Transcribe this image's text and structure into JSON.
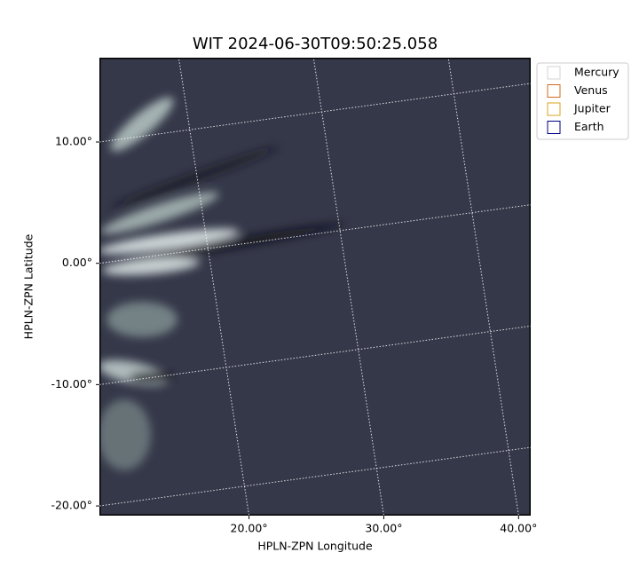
{
  "chart_data": {
    "type": "image",
    "title": "WIT 2024-06-30T09:50:25.058",
    "x_label": "HPLN-ZPN Longitude",
    "y_label": "HPLN-ZPN Latitude",
    "xlim": [
      8.9,
      40.9
    ],
    "ylim": [
      -20.8,
      16.95
    ],
    "xticks": [
      {
        "value": 20,
        "label": "20.00°"
      },
      {
        "value": 30,
        "label": "30.00°"
      },
      {
        "value": 40,
        "label": "40.00°"
      }
    ],
    "yticks": [
      {
        "value": 10,
        "label": "10.00°"
      },
      {
        "value": 0,
        "label": "0.00°"
      },
      {
        "value": -10,
        "label": "-10.00°"
      },
      {
        "value": -20,
        "label": "-20.00°"
      }
    ],
    "grid": true,
    "legend_position": "outside-upper-right",
    "series": [
      {
        "name": "Mercury",
        "color": "#d3d3d3"
      },
      {
        "name": "Venus",
        "color": "#d2691e"
      },
      {
        "name": "Jupiter",
        "color": "#daa520"
      },
      {
        "name": "Earth",
        "color": "#000080"
      }
    ]
  }
}
